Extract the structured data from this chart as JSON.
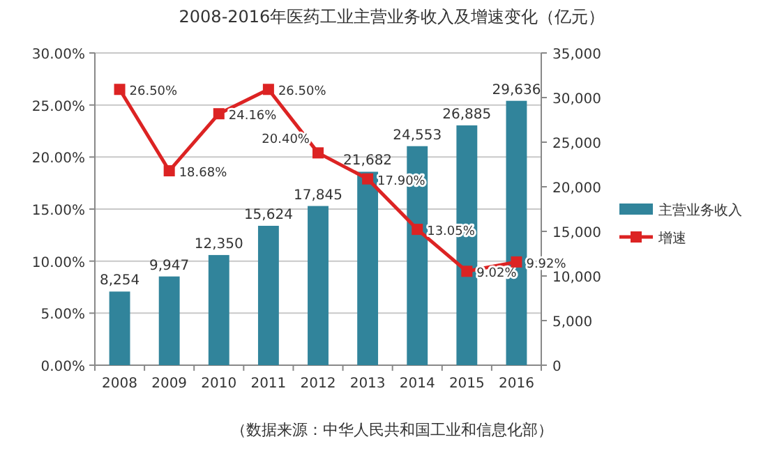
{
  "chart_data": {
    "type": "bar",
    "title": "2008-2016年医药工业主营业务收入及增速变化（亿元）",
    "categories": [
      "2008",
      "2009",
      "2010",
      "2011",
      "2012",
      "2013",
      "2014",
      "2015",
      "2016"
    ],
    "series": [
      {
        "name": "主营业务收入",
        "axis": "y2",
        "color": "#31849b",
        "values": [
          8254,
          9947,
          12350,
          15624,
          17845,
          21682,
          24553,
          26885,
          29636
        ],
        "value_labels": [
          "8,254",
          "9,947",
          "12,350",
          "15,624",
          "17,845",
          "21,682",
          "24,553",
          "26,885",
          "29,636"
        ]
      },
      {
        "name": "增速",
        "type": "line",
        "color": "#dc2323",
        "marker": "square",
        "values": [
          26.5,
          18.68,
          24.16,
          26.5,
          20.4,
          17.9,
          13.05,
          9.02,
          9.92
        ],
        "value_labels": [
          "26.50%",
          "18.68%",
          "24.16%",
          "26.50%",
          "20.40%",
          "17.90%",
          "13.05%",
          "9.02%",
          "9.92%"
        ]
      }
    ],
    "ylim": [
      0,
      30
    ],
    "yticks": [
      {
        "value": 0,
        "label": "0.00%"
      },
      {
        "value": 5,
        "label": "5.00%"
      },
      {
        "value": 10,
        "label": "10.00%"
      },
      {
        "value": 15,
        "label": "15.00%"
      },
      {
        "value": 20,
        "label": "20.00%"
      },
      {
        "value": 25,
        "label": "25.00%"
      },
      {
        "value": 30,
        "label": "30.00%"
      }
    ],
    "y2lim": [
      0,
      35000
    ],
    "y2ticks": [
      0,
      {
        "value": 5000,
        "label": "5,000"
      },
      {
        "value": 10000,
        "label": "10,000"
      },
      {
        "value": 15000,
        "label": "15,000"
      },
      {
        "value": 20000,
        "label": "20,000"
      },
      {
        "value": 25000,
        "label": "25,000"
      },
      {
        "value": 30000,
        "label": "30,000"
      },
      {
        "value": 35000,
        "label": "35,000"
      }
    ],
    "grid": "y",
    "legend": "right",
    "annotations": [
      "（数据来源：中华人民共和国工业和信息化部）"
    ]
  }
}
